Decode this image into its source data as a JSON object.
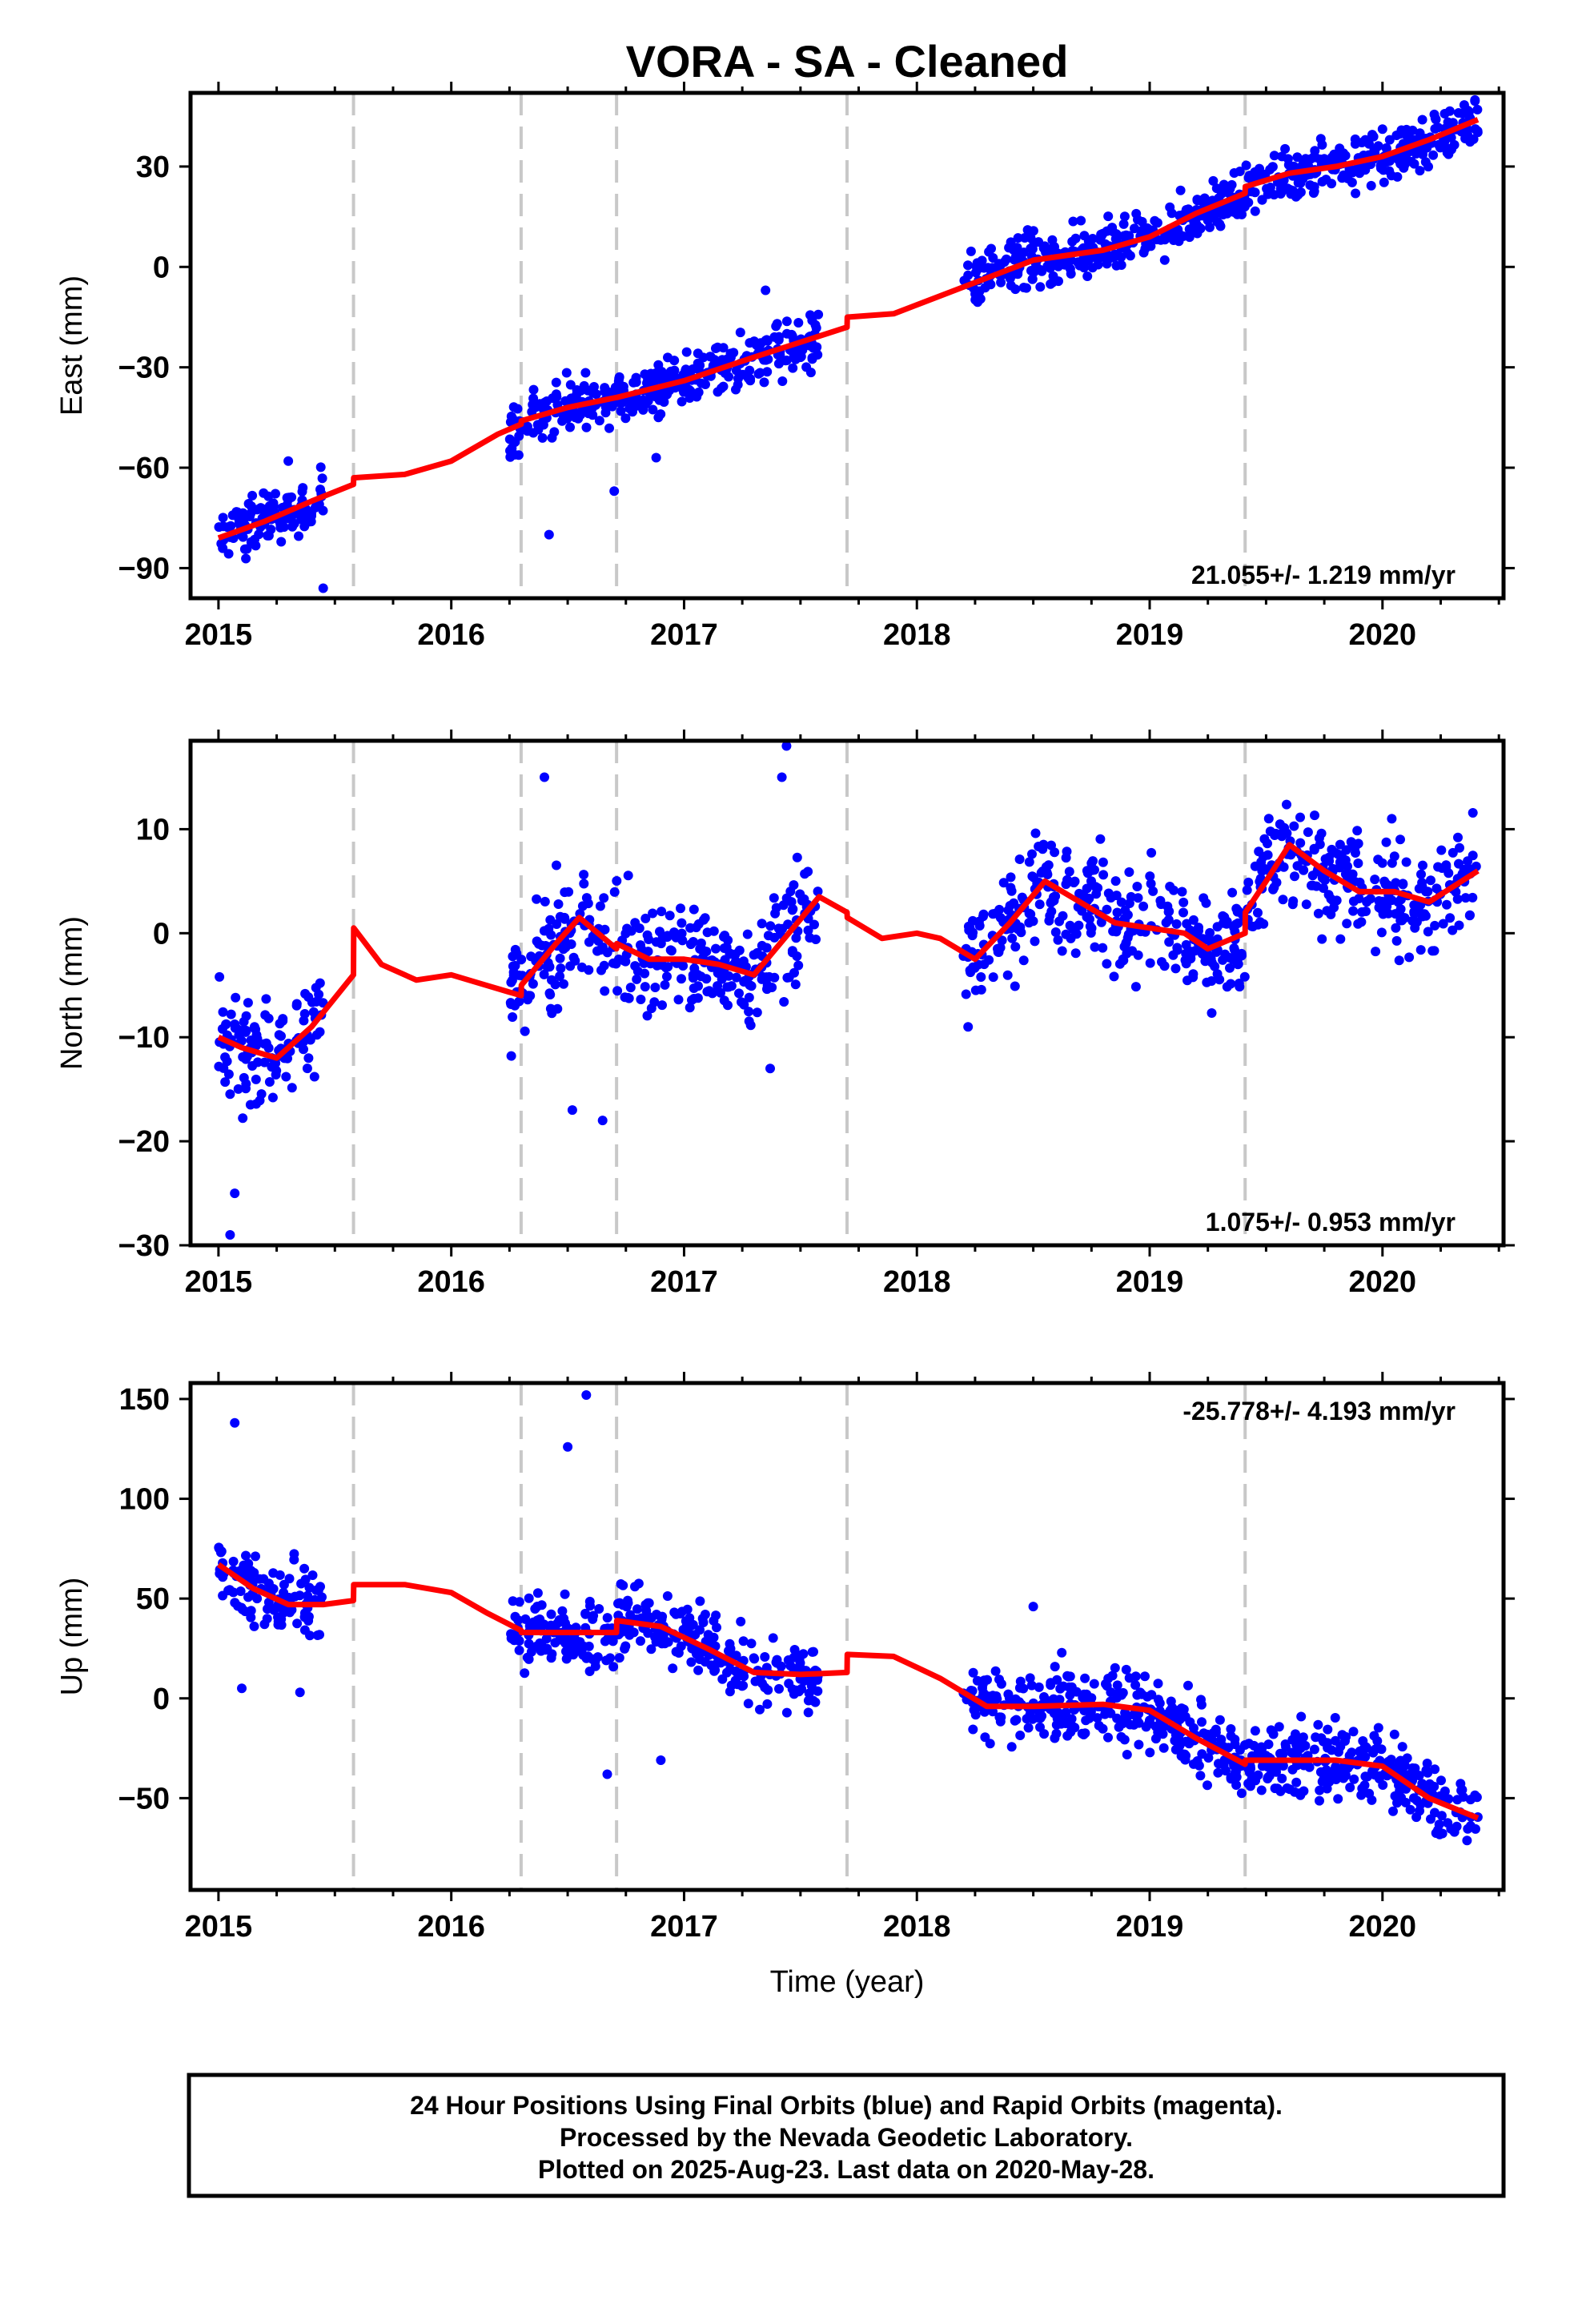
{
  "chart_data": {
    "type": "scatter",
    "title": "VORA  - SA - Cleaned",
    "xlabel": "Time (year)",
    "x_ticks": [
      "2015",
      "2016",
      "2017",
      "2018",
      "2019",
      "2020"
    ],
    "xlim": [
      2014.88,
      2020.52
    ],
    "offset_lines": [
      2015.58,
      2016.3,
      2016.71,
      2017.7,
      2019.41
    ],
    "grid": false,
    "legend": "none",
    "colors": {
      "points": "#0000ff",
      "fit": "#ff0000",
      "offset_lines": "#c8c8c8",
      "frame": "#000000"
    },
    "panels": [
      {
        "component": "East",
        "ylabel": "East (mm)",
        "ylim": [
          -99,
          52
        ],
        "y_ticks": [
          -90,
          -60,
          -30,
          0,
          30
        ],
        "y_tick_labels": [
          "−90",
          "−60",
          "−30",
          "0",
          "30"
        ],
        "rate_text": "21.055+/- 1.219 mm/yr",
        "rate_position": "bottom-right",
        "data_segments": [
          [
            2015.0,
            2015.45
          ],
          [
            2016.25,
            2016.95
          ],
          [
            2016.95,
            2017.58
          ],
          [
            2018.2,
            2019.38
          ],
          [
            2019.38,
            2020.41
          ]
        ],
        "fit": {
          "x": [
            2015.0,
            2015.2,
            2015.4,
            2015.58,
            2015.581,
            2015.8,
            2016.0,
            2016.2,
            2016.3,
            2016.301,
            2016.5,
            2016.71,
            2016.711,
            2017.0,
            2017.3,
            2017.7,
            2017.701,
            2017.9,
            2018.2,
            2018.5,
            2018.8,
            2019.0,
            2019.2,
            2019.41,
            2019.411,
            2019.6,
            2019.8,
            2020.0,
            2020.2,
            2020.41
          ],
          "y": [
            -81,
            -76,
            -70,
            -65,
            -63,
            -62,
            -58,
            -50,
            -47,
            -46,
            -42,
            -39,
            -39,
            -34,
            -27,
            -18,
            -15,
            -14,
            -6,
            2,
            5,
            9,
            16,
            22,
            24,
            28,
            30,
            33,
            38,
            44
          ]
        },
        "scatter_spread": 4,
        "outliers": [
          [
            2015.45,
            -96
          ],
          [
            2016.42,
            -80
          ],
          [
            2016.7,
            -67
          ],
          [
            2017.35,
            -7
          ],
          [
            2016.88,
            -57
          ],
          [
            2015.3,
            -58
          ]
        ]
      },
      {
        "component": "North",
        "ylabel": "North (mm)",
        "ylim": [
          -30,
          18.5
        ],
        "y_ticks": [
          -30,
          -20,
          -10,
          0,
          10
        ],
        "y_tick_labels": [
          "−30",
          "−20",
          "−10",
          "0",
          "10"
        ],
        "rate_text": "1.075+/- 0.953 mm/yr",
        "rate_position": "bottom-right",
        "data_segments": [
          [
            2015.0,
            2015.45
          ],
          [
            2016.25,
            2016.95
          ],
          [
            2016.95,
            2017.58
          ],
          [
            2018.2,
            2019.38
          ],
          [
            2019.38,
            2020.41
          ]
        ],
        "fit": {
          "x": [
            2015.0,
            2015.1,
            2015.25,
            2015.4,
            2015.58,
            2015.581,
            2015.7,
            2015.85,
            2016.0,
            2016.15,
            2016.3,
            2016.301,
            2016.45,
            2016.55,
            2016.71,
            2016.711,
            2016.85,
            2017.0,
            2017.15,
            2017.3,
            2017.45,
            2017.58,
            2017.7,
            2017.701,
            2017.85,
            2018.0,
            2018.1,
            2018.25,
            2018.4,
            2018.55,
            2018.7,
            2018.85,
            2019.0,
            2019.15,
            2019.25,
            2019.41,
            2019.411,
            2019.5,
            2019.6,
            2019.75,
            2019.9,
            2020.05,
            2020.2,
            2020.41
          ],
          "y": [
            -10,
            -11,
            -12,
            -9,
            -4,
            0.5,
            -3,
            -4.5,
            -4,
            -5,
            -6,
            -5,
            -1,
            1.5,
            -1.5,
            -1,
            -2.5,
            -2.5,
            -3,
            -4,
            0,
            3.5,
            2,
            1.5,
            -0.5,
            0,
            -0.5,
            -2.5,
            1,
            5,
            3,
            1,
            0.5,
            0,
            -1.5,
            0,
            2,
            5,
            8.5,
            6,
            4,
            4,
            3,
            6
          ]
        },
        "scatter_spread": 2.6,
        "outliers": [
          [
            2015.05,
            -29
          ],
          [
            2015.07,
            -25
          ],
          [
            2016.4,
            15
          ],
          [
            2016.52,
            -17
          ],
          [
            2016.65,
            -18
          ],
          [
            2017.44,
            18
          ],
          [
            2017.42,
            15
          ],
          [
            2018.22,
            -9
          ],
          [
            2017.37,
            -13
          ]
        ]
      },
      {
        "component": "Up",
        "ylabel": "Up (mm)",
        "ylim": [
          -96,
          158
        ],
        "y_ticks": [
          -50,
          0,
          50,
          100,
          150
        ],
        "y_tick_labels": [
          "−50",
          "0",
          "50",
          "100",
          "150"
        ],
        "rate_text": "-25.778+/- 4.193 mm/yr",
        "rate_position": "top-right",
        "data_segments": [
          [
            2015.0,
            2015.45
          ],
          [
            2016.25,
            2016.95
          ],
          [
            2016.95,
            2017.58
          ],
          [
            2018.2,
            2019.38
          ],
          [
            2019.38,
            2020.41
          ]
        ],
        "fit": {
          "x": [
            2015.0,
            2015.15,
            2015.3,
            2015.45,
            2015.58,
            2015.581,
            2015.8,
            2016.0,
            2016.15,
            2016.3,
            2016.301,
            2016.5,
            2016.71,
            2016.711,
            2016.9,
            2017.1,
            2017.3,
            2017.5,
            2017.7,
            2017.701,
            2017.9,
            2018.1,
            2018.3,
            2018.5,
            2018.8,
            2019.0,
            2019.2,
            2019.41,
            2019.411,
            2019.6,
            2019.8,
            2020.0,
            2020.2,
            2020.41
          ],
          "y": [
            67,
            55,
            47,
            47,
            49,
            57,
            57,
            53,
            43,
            34,
            33,
            33,
            33,
            39,
            36,
            25,
            13,
            12,
            13,
            22,
            21,
            10,
            -4,
            -4,
            -3,
            -6,
            -20,
            -33,
            -31,
            -31,
            -31,
            -34,
            -50,
            -60
          ]
        },
        "scatter_spread": 9,
        "outliers": [
          [
            2015.07,
            138
          ],
          [
            2016.58,
            152
          ],
          [
            2016.5,
            126
          ],
          [
            2016.67,
            -38
          ],
          [
            2016.9,
            -31
          ],
          [
            2015.35,
            3
          ],
          [
            2015.1,
            5
          ],
          [
            2018.5,
            46
          ]
        ]
      }
    ]
  },
  "footer": {
    "line1": "24 Hour Positions Using Final Orbits (blue) and Rapid Orbits (magenta).",
    "line2": "Processed by the Nevada Geodetic Laboratory.",
    "line3": "Plotted on 2025-Aug-23. Last data on 2020-May-28."
  }
}
